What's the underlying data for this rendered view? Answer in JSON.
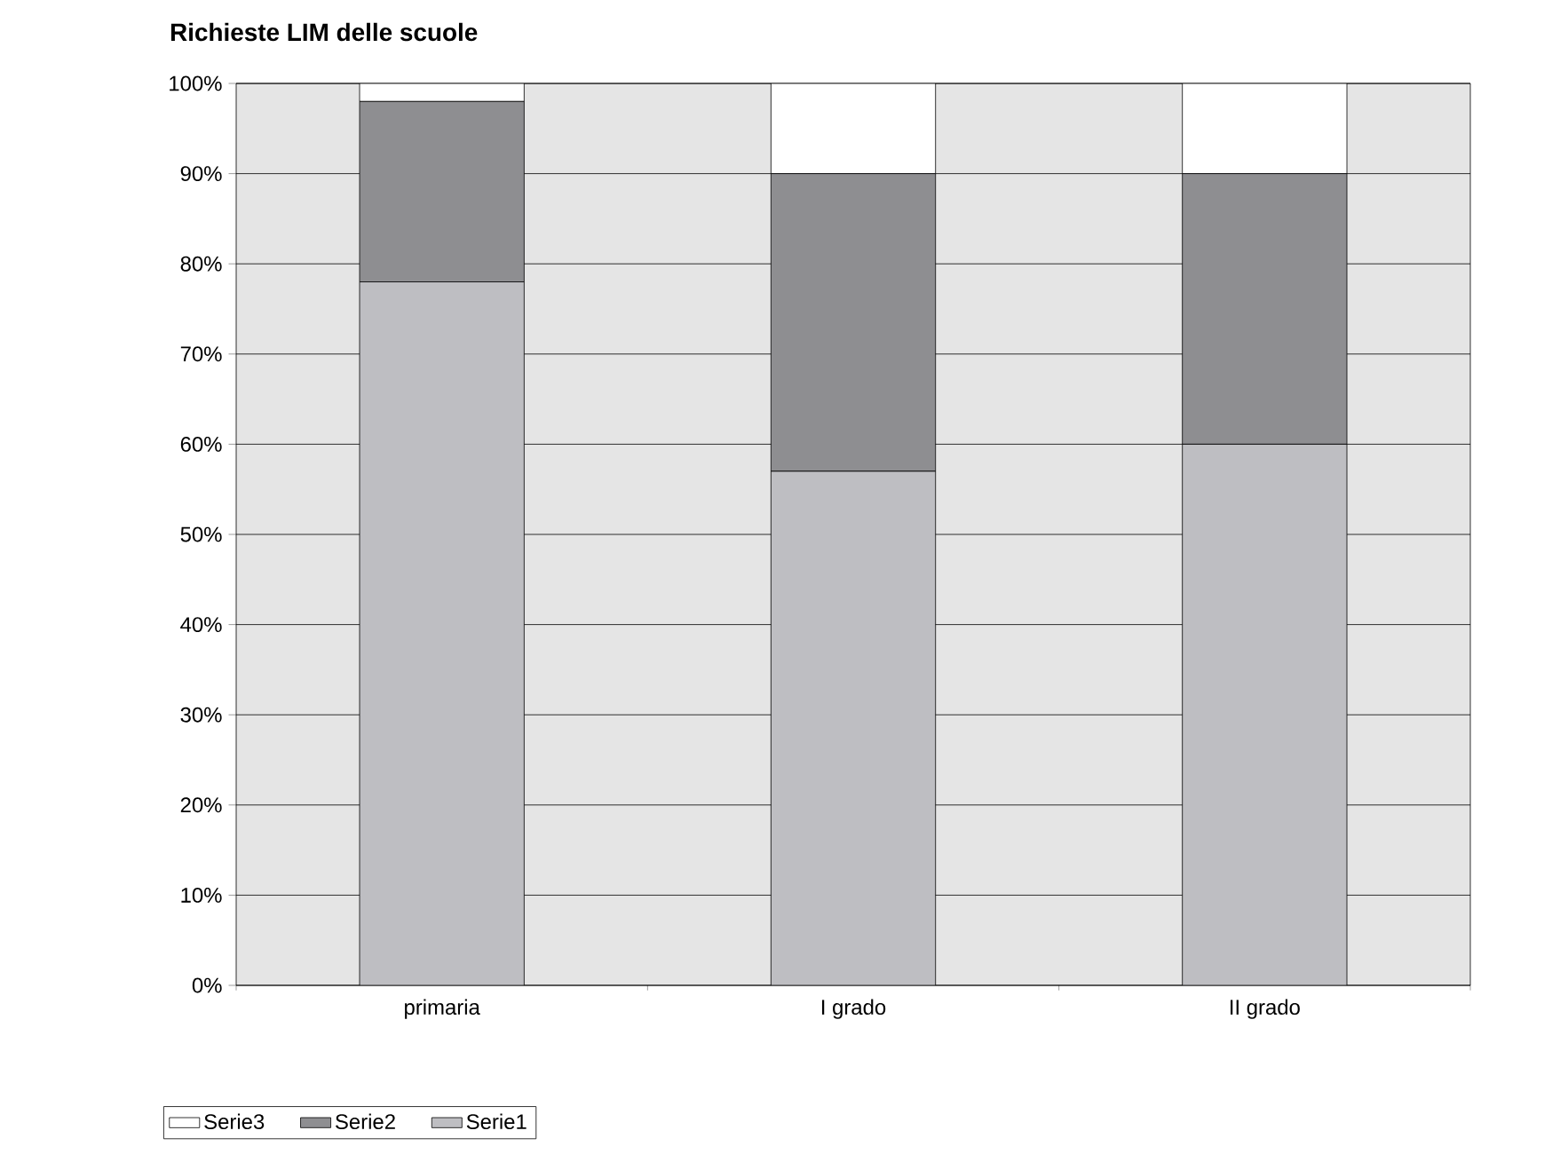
{
  "chart_data": {
    "type": "bar",
    "title": "Richieste LIM delle scuole",
    "stacked": true,
    "categories": [
      "primaria",
      "I grado",
      "II grado"
    ],
    "series": [
      {
        "name": "Serie1",
        "color": "#bebec2",
        "values": [
          78,
          57,
          60
        ]
      },
      {
        "name": "Serie2",
        "color": "#8e8e91",
        "values": [
          20,
          33,
          30
        ]
      },
      {
        "name": "Serie3",
        "color": "#ffffff",
        "values": [
          2,
          10,
          10
        ]
      }
    ],
    "ylim": [
      0,
      100
    ],
    "yticks": [
      {
        "value": 0,
        "label": "0%"
      },
      {
        "value": 10,
        "label": "10%"
      },
      {
        "value": 20,
        "label": "20%"
      },
      {
        "value": 30,
        "label": "30%"
      },
      {
        "value": 40,
        "label": "40%"
      },
      {
        "value": 50,
        "label": "50%"
      },
      {
        "value": 60,
        "label": "60%"
      },
      {
        "value": 70,
        "label": "70%"
      },
      {
        "value": 80,
        "label": "80%"
      },
      {
        "value": 90,
        "label": "90%"
      },
      {
        "value": 100,
        "label": "100%"
      }
    ],
    "grid": "y",
    "legend": "bottom"
  }
}
